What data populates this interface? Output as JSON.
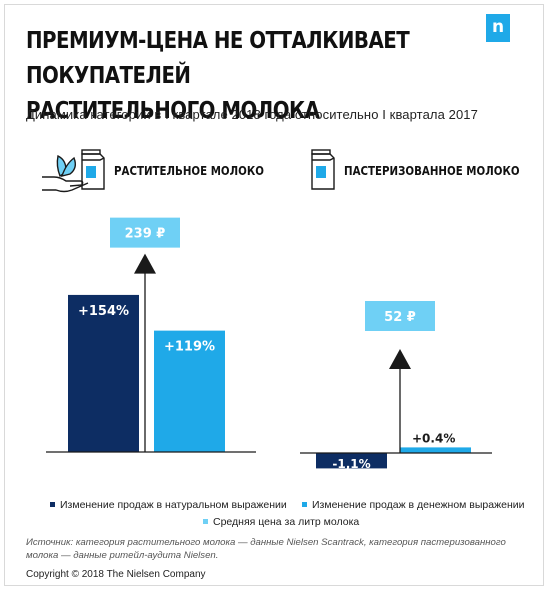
{
  "title_line1": "ПРЕМИУМ-ЦЕНА НЕ ОТТАЛКИВАЕТ ПОКУПАТЕЛЕЙ",
  "title_line2": "РАСТИТЕЛЬНОГО МОЛОКА",
  "logo_letter": "n",
  "subtitle": "Динамика  категорий  в I квартале 2018 года относительно  I квартала 2017",
  "colors": {
    "volume": "#0d2d63",
    "value": "#1fa9e8",
    "price": "#6fd0f5",
    "arrow": "#1a1a1a",
    "text": "#1c1c1c"
  },
  "icons": [
    "leaf-hand-icon",
    "milk-carton-icon"
  ],
  "chart_data": [
    {
      "type": "bar",
      "category": "РАСТИТЕЛЬНОЕ МОЛОКО",
      "series": [
        {
          "name": "Изменение  продаж в натуральном  выражении",
          "value": 154,
          "label": "+154%"
        },
        {
          "name": "Изменение  продаж в денежном выражении",
          "value": 119,
          "label": "+119%"
        }
      ],
      "price": {
        "name": "Средняя цена за литр  молока",
        "value": 239,
        "label": "239 ₽"
      }
    },
    {
      "type": "bar",
      "category": "ПАСТЕРИЗОВАННОЕ МОЛОКО",
      "series": [
        {
          "name": "Изменение  продаж в натуральном  выражении",
          "value": -1.1,
          "label": "-1,1%"
        },
        {
          "name": "Изменение  продаж в денежном выражении",
          "value": 0.4,
          "label": "+0.4%"
        }
      ],
      "price": {
        "name": "Средняя цена за литр  молока",
        "value": 52,
        "label": "52 ₽"
      }
    }
  ],
  "legend": [
    "Изменение  продаж в натуральном  выражении",
    "Изменение  продаж в денежном выражении",
    "Средняя цена за литр  молока"
  ],
  "source_text": "Источник: категория растительного молока — данные Nielsen Scantrack, категория пастеризованного молока — данные ритейл-аудита Nielsen.",
  "copyright": "Copyright © 2018 The Nielsen Company"
}
